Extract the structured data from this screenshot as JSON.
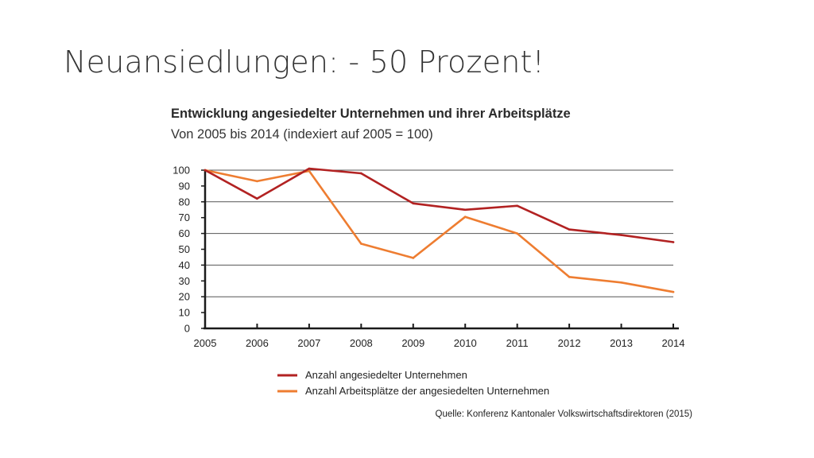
{
  "slide": {
    "title": "Neuansiedlungen: - 50 Prozent!"
  },
  "chart_data": {
    "type": "line",
    "title": "Entwicklung angesiedelter Unternehmen und ihrer Arbeitsplätze",
    "subtitle": "Von 2005 bis 2014 (indexiert auf 2005 = 100)",
    "xlabel": "",
    "ylabel": "",
    "x": [
      "2005",
      "2006",
      "2007",
      "2008",
      "2009",
      "2010",
      "2011",
      "2012",
      "2013",
      "2014"
    ],
    "ylim": [
      0,
      100
    ],
    "yticks": [
      0,
      10,
      20,
      30,
      40,
      50,
      60,
      70,
      80,
      90,
      100
    ],
    "gridlines": [
      20,
      40,
      60,
      80,
      100
    ],
    "legend_position": "bottom",
    "series": [
      {
        "name": "Anzahl angesiedelter Unternehmen",
        "color": "#b22222",
        "values": [
          100,
          82,
          101,
          98,
          79,
          75,
          77.5,
          62.5,
          59,
          54.5
        ]
      },
      {
        "name": "Anzahl Arbeitsplätze der angesiedelten Unternehmen",
        "color": "#ee7d31",
        "values": [
          100,
          93,
          99.5,
          53.5,
          44.5,
          70.5,
          60,
          32.5,
          29,
          23
        ]
      }
    ],
    "source": "Quelle: Konferenz Kantonaler Volkswirtschaftsdirektoren (2015)"
  }
}
